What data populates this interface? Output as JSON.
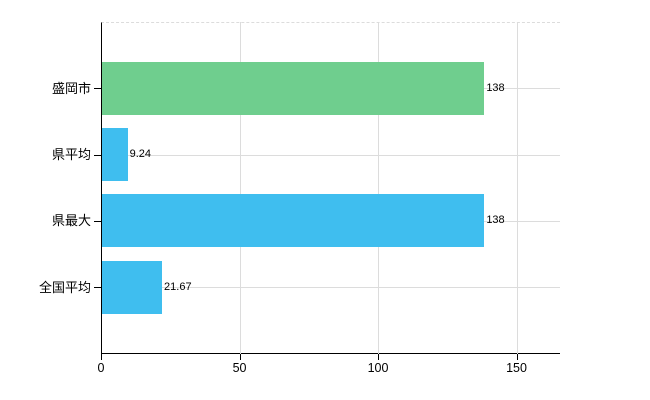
{
  "chart_data": {
    "type": "bar",
    "orientation": "horizontal",
    "title": "",
    "xlabel": "",
    "ylabel": "",
    "categories": [
      "盛岡市",
      "県平均",
      "県最大",
      "全国平均"
    ],
    "values": [
      138,
      9.24,
      138,
      21.67
    ],
    "value_labels": [
      "138",
      "9.24",
      "138",
      "21.67"
    ],
    "bar_colors": [
      "#6fce8e",
      "#3fbeef",
      "#3fbeef",
      "#3fbeef"
    ],
    "xlim": [
      0,
      165.5
    ],
    "x_ticks": [
      0,
      50,
      100,
      150
    ],
    "x_tick_labels": [
      "0",
      "50",
      "100",
      "150"
    ],
    "grid": true,
    "legend": false
  },
  "colors": {
    "background": "#ffffff",
    "axis": "#000000",
    "gridline": "#dcdcdc",
    "text": "#000000",
    "green_bar": "#6fce8e",
    "blue_bar": "#3fbeef"
  }
}
